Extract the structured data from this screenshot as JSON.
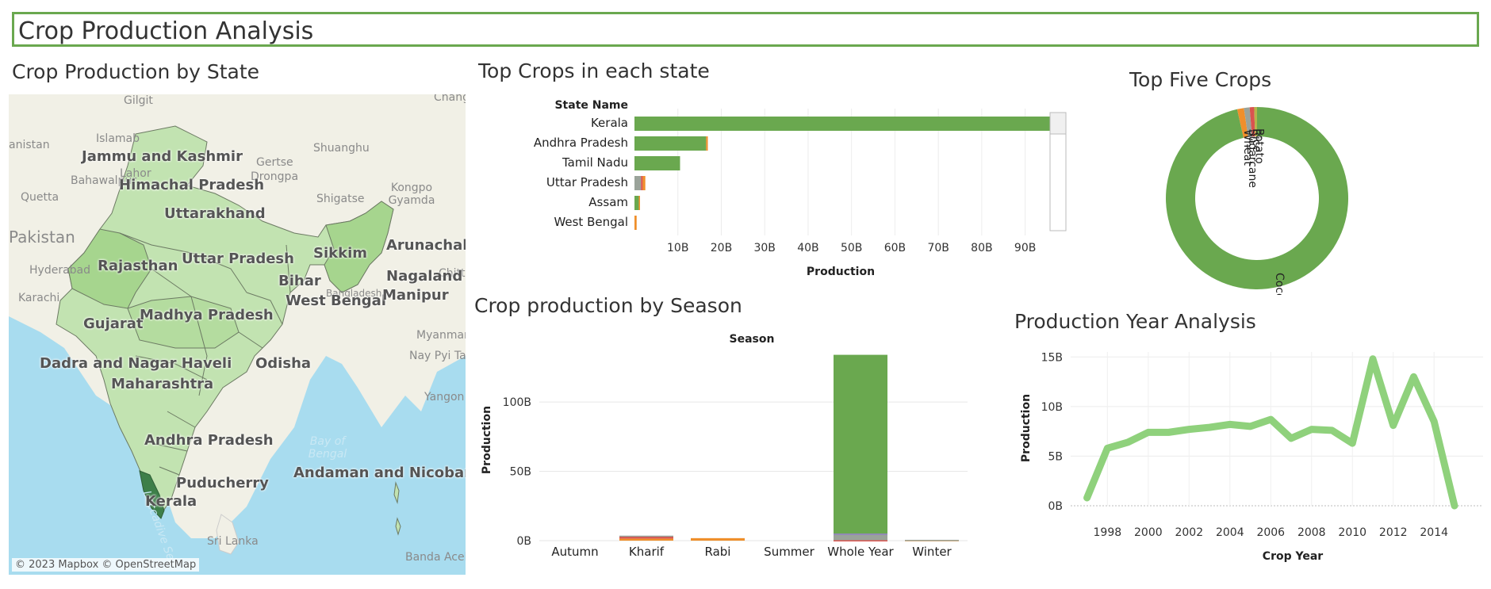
{
  "dashboard_title": "Crop Production Analysis",
  "map_panel": {
    "title": "Crop Production by State",
    "credit": "© 2023 Mapbox © OpenStreetMap",
    "state_labels": [
      "Jammu and Kashmir",
      "Himachal Pradesh",
      "Uttarakhand",
      "Rajasthan",
      "Uttar Pradesh",
      "Sikkim",
      "Arunachal Prad",
      "Bihar",
      "Nagaland",
      "West Bengal",
      "Manipur",
      "Gujarat",
      "Madhya Pradesh",
      "Dadra and Nagar Haveli",
      "Odisha",
      "Maharashtra",
      "Andhra Pradesh",
      "Andaman and Nicobar Isl",
      "Puducherry",
      "Kerala"
    ],
    "bg_labels": [
      "Gilgit",
      "Chang",
      "Islamab",
      "Shuanghu",
      "anistan",
      "Lahor",
      "Gertse",
      "Quetta",
      "Bahawalpur",
      "Drongpa",
      "Shigatse",
      "Kongpo Gyamda",
      "Pakistan",
      "Hyderabad",
      "Chittag",
      "Karachi",
      "Bangladesh",
      "Myanmar",
      "Nay Pyi Taw",
      "Yangon",
      "Sri Lanka",
      "Banda Aceh"
    ],
    "sea_labels": [
      "Bay of Bengal",
      "Laccadive Sea"
    ],
    "colors": {
      "land": "#f1f0e6",
      "water": "#a8dcef",
      "state_light": "#c2e3b1",
      "state_mid": "#a6d58e",
      "state_dark": "#3d7f49",
      "border": "#6c7a63"
    }
  },
  "top_crops_panel": {
    "title": "Top Crops in each state",
    "header": "State Name"
  },
  "top_five_panel": {
    "title": "Top Five Crops"
  },
  "season_panel": {
    "title": "Crop production by Season",
    "header": "Season"
  },
  "year_panel": {
    "title": "Production Year Analysis"
  },
  "colors": {
    "green": "#6aa84f",
    "orange": "#ef8f2b",
    "light_green": "#8fd17c",
    "gray": "#9aa39a",
    "red": "#d9534f",
    "olive": "#b5b34a",
    "purple": "#8e7cc3"
  },
  "chart_data": [
    {
      "type": "bar",
      "orientation": "horizontal",
      "stacked": true,
      "title": "Top Crops in each state",
      "categories": [
        "Kerala",
        "Andhra Pradesh",
        "Tamil Nadu",
        "Uttar Pradesh",
        "Assam",
        "West Bengal"
      ],
      "ylabel": "State Name",
      "xlabel": "Production",
      "xlim": [
        0,
        95000000000
      ],
      "xticks": [
        "10B",
        "20B",
        "30B",
        "40B",
        "50B",
        "60B",
        "70B",
        "80B",
        "90B"
      ],
      "series": [
        {
          "name": "Coconut",
          "color": "#6aa84f",
          "values": [
            97000000000,
            16500000000,
            10500000000,
            0,
            1000000000,
            0
          ]
        },
        {
          "name": "Sugarcane",
          "color": "#9aa39a",
          "values": [
            0,
            0,
            0,
            1500000000,
            0,
            0
          ]
        },
        {
          "name": "Rice",
          "color": "#d9534f",
          "values": [
            0,
            0,
            0,
            400000000,
            0,
            0
          ]
        },
        {
          "name": "Wheat",
          "color": "#ef8f2b",
          "values": [
            0,
            400000000,
            0,
            600000000,
            200000000,
            500000000
          ]
        },
        {
          "name": "Potato",
          "color": "#b5b34a",
          "values": [
            0,
            0,
            0,
            0,
            0,
            0
          ]
        }
      ],
      "grid": true
    },
    {
      "type": "pie",
      "donut": true,
      "title": "Top Five Crops",
      "slices": [
        {
          "label": "Coconut",
          "value": 96.5,
          "color": "#6aa84f"
        },
        {
          "label": "Wheat",
          "value": 1.2,
          "color": "#ef8f2b"
        },
        {
          "label": "Sugarcane",
          "value": 1.0,
          "color": "#9aa39a"
        },
        {
          "label": "Rice",
          "value": 0.8,
          "color": "#d9534f"
        },
        {
          "label": "Potato",
          "value": 0.5,
          "color": "#b5b34a"
        }
      ]
    },
    {
      "type": "bar",
      "stacked": true,
      "title": "Crop production by Season",
      "xlabel": "Season",
      "ylabel": "Production",
      "categories": [
        "Autumn",
        "Kharif",
        "Rabi",
        "Summer",
        "Whole Year",
        "Winter"
      ],
      "ylim": [
        0,
        135000000000
      ],
      "yticks": [
        "0B",
        "50B",
        "100B"
      ],
      "series": [
        {
          "name": "Coconut",
          "color": "#6aa84f",
          "values": [
            0,
            0,
            0,
            0,
            129000000000,
            0
          ]
        },
        {
          "name": "Sugarcane",
          "color": "#9aa39a",
          "values": [
            0,
            600000000,
            0,
            0,
            4000000000,
            200000000
          ]
        },
        {
          "name": "Rice",
          "color": "#d9534f",
          "values": [
            0,
            1500000000,
            0,
            0,
            300000000,
            0
          ]
        },
        {
          "name": "Wheat",
          "color": "#ef8f2b",
          "values": [
            0,
            1500000000,
            1800000000,
            0,
            0,
            400000000
          ]
        },
        {
          "name": "Potato",
          "color": "#8e7cc3",
          "values": [
            0,
            0,
            0,
            0,
            800000000,
            0
          ]
        }
      ],
      "grid": true
    },
    {
      "type": "line",
      "title": "Production Year Analysis",
      "xlabel": "Crop Year",
      "ylabel": "Production",
      "x": [
        1997,
        1998,
        1999,
        2000,
        2001,
        2002,
        2003,
        2004,
        2005,
        2006,
        2007,
        2008,
        2009,
        2010,
        2011,
        2012,
        2013,
        2014,
        2015
      ],
      "y": [
        0.8,
        5.8,
        6.4,
        7.4,
        7.4,
        7.7,
        7.9,
        8.2,
        8.0,
        8.7,
        6.8,
        7.7,
        7.6,
        6.3,
        14.8,
        8.1,
        13.0,
        8.5,
        0.0
      ],
      "yunit": "B",
      "xlim": [
        1996.2,
        2016.4
      ],
      "ylim": [
        0,
        15.5
      ],
      "xticks": [
        1998,
        2000,
        2002,
        2004,
        2006,
        2008,
        2010,
        2012,
        2014
      ],
      "yticks": [
        "0B",
        "5B",
        "10B",
        "15B"
      ],
      "grid": true
    }
  ]
}
